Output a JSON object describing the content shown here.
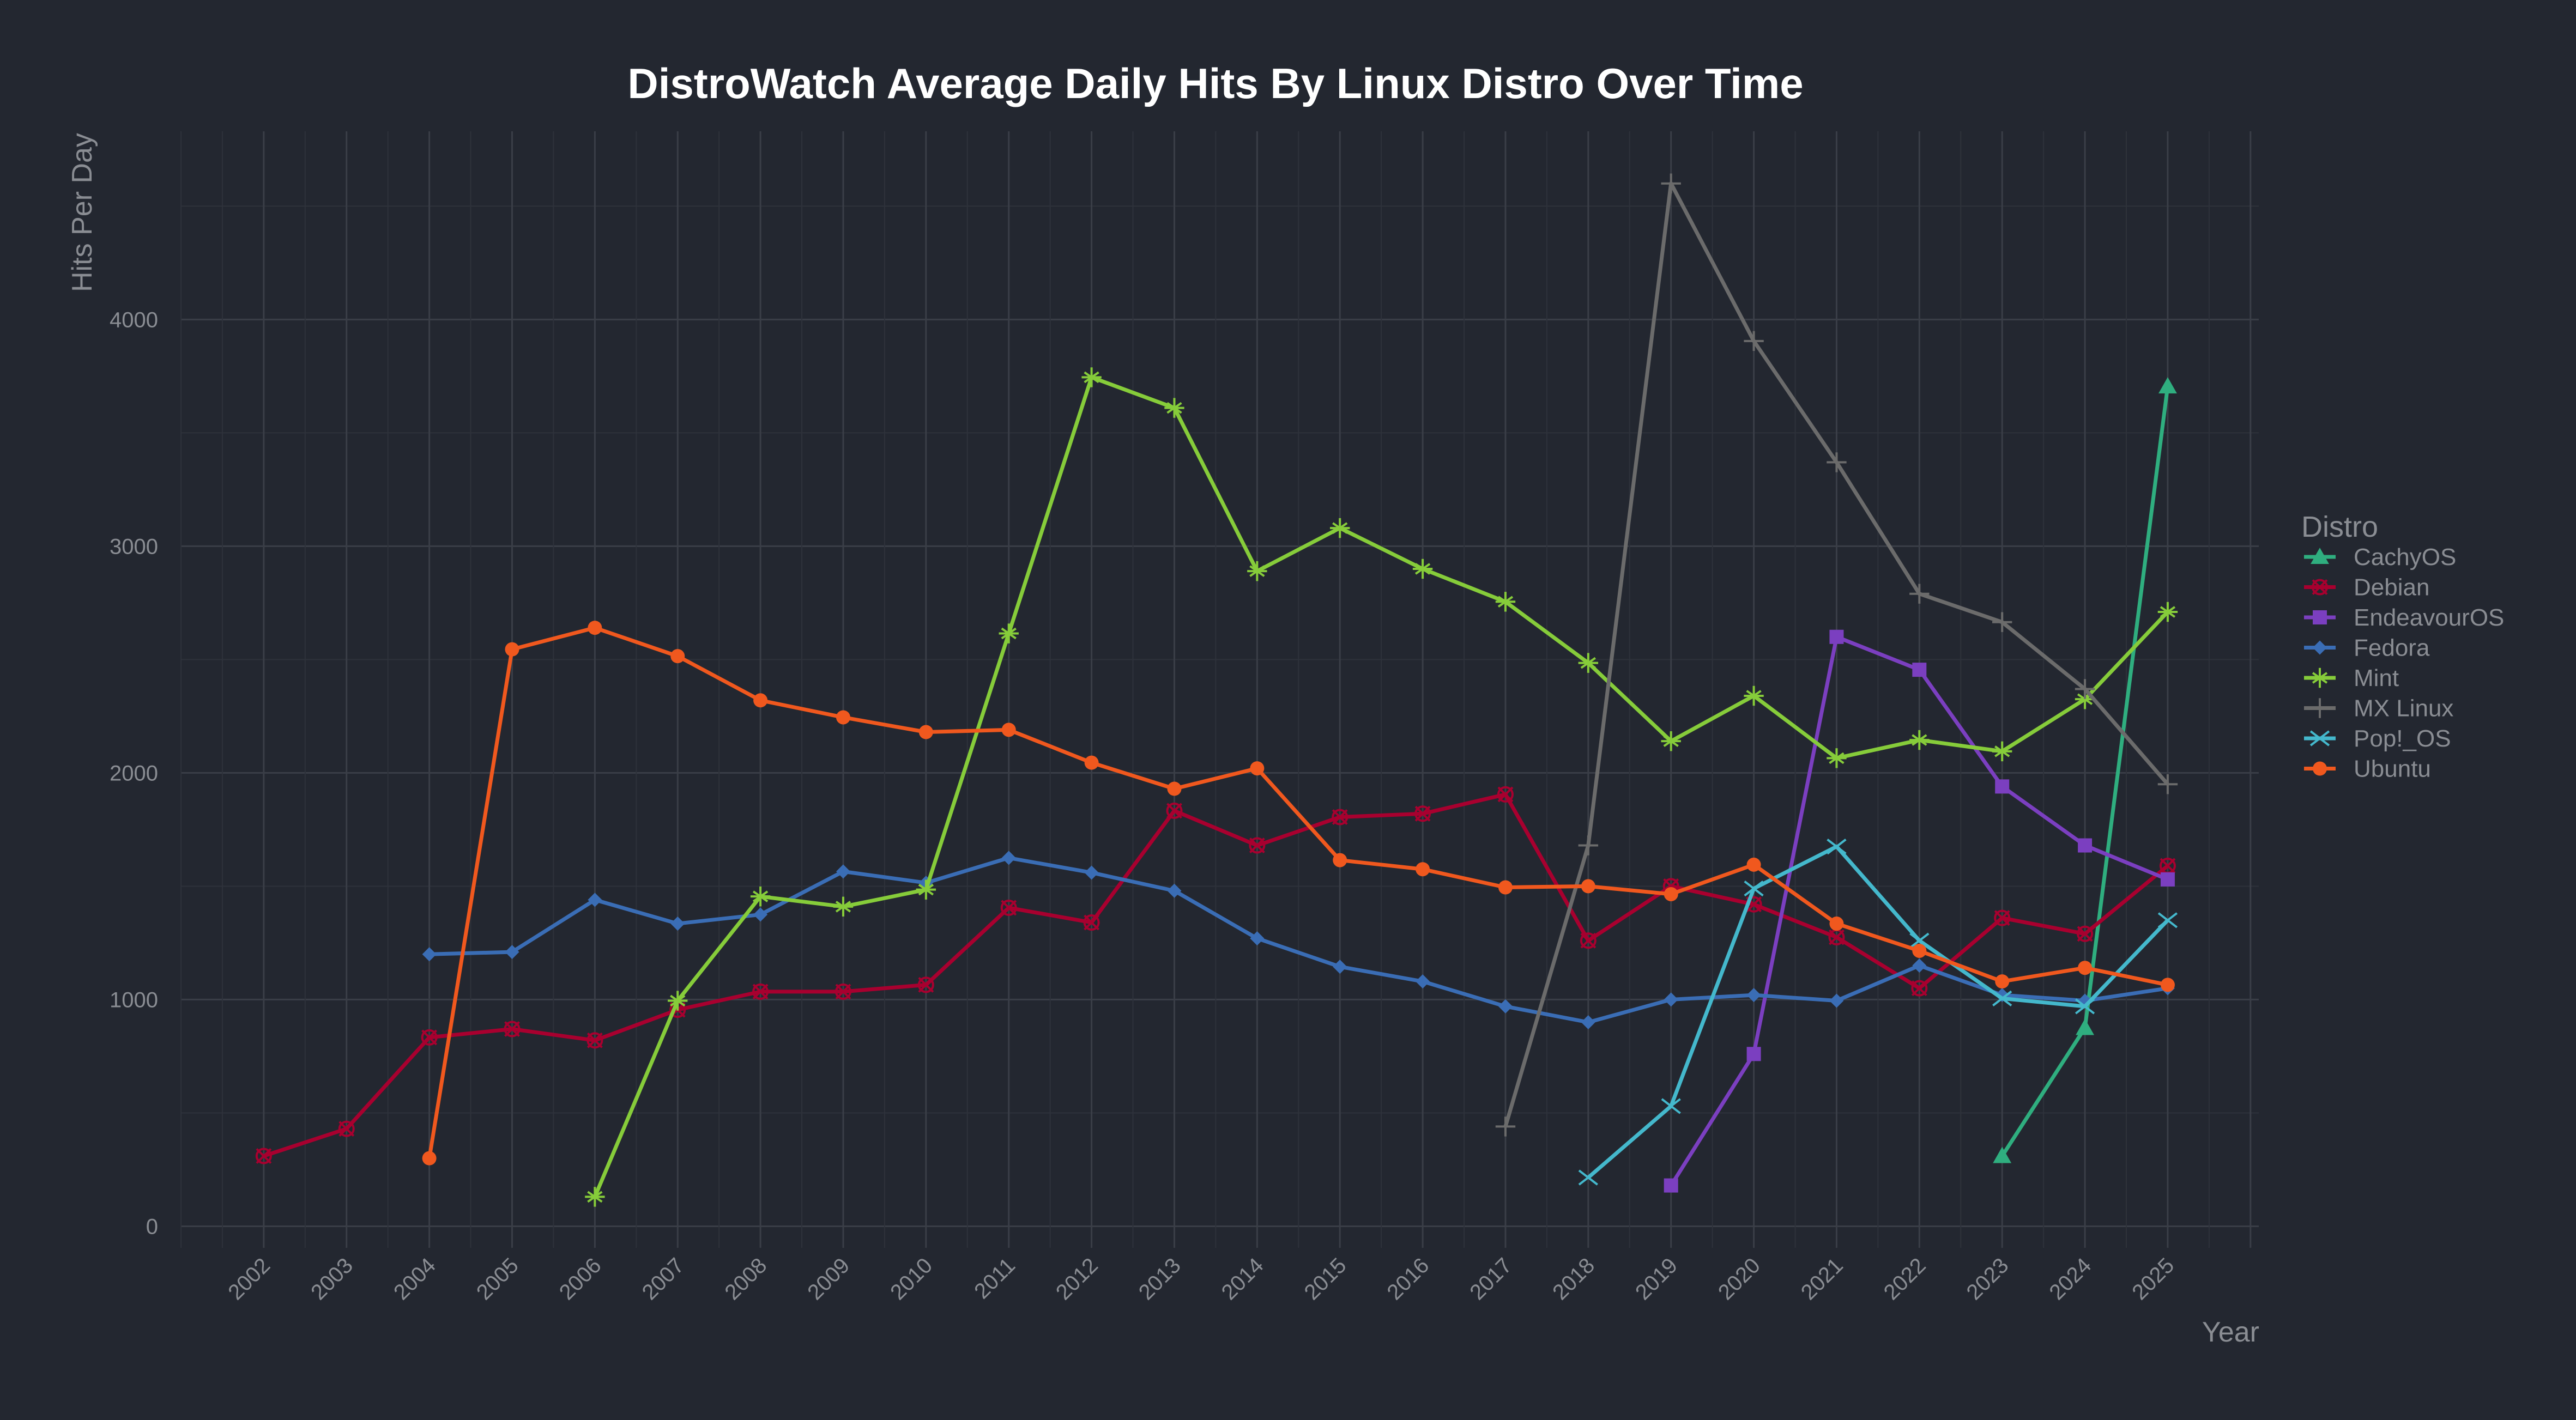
{
  "chart_data": {
    "type": "line",
    "title": "DistroWatch Average Daily Hits By Linux Distro Over Time",
    "xlabel": "Year",
    "ylabel": "Hits Per Day",
    "xlim": [
      2001,
      2026.1
    ],
    "ylim": [
      -95,
      4830
    ],
    "x_ticks": [
      2002,
      2003,
      2004,
      2005,
      2006,
      2007,
      2008,
      2009,
      2010,
      2011,
      2012,
      2013,
      2014,
      2015,
      2016,
      2017,
      2018,
      2019,
      2020,
      2021,
      2022,
      2023,
      2024,
      2025
    ],
    "x_tick_labels": [
      "2002",
      "2003",
      "2004",
      "2005",
      "2006",
      "2007",
      "2008",
      "2009",
      "2010",
      "2011",
      "2012",
      "2013",
      "2014",
      "2015",
      "2016",
      "2017",
      "2018",
      "2019",
      "2020",
      "2021",
      "2022",
      "2023",
      "2024",
      "2025"
    ],
    "y_ticks": [
      0,
      1000,
      2000,
      3000,
      4000
    ],
    "y_tick_labels": [
      "0",
      "1000",
      "2000",
      "3000",
      "4000"
    ],
    "grid": true,
    "legend": {
      "title": "Distro",
      "placement": "right"
    },
    "series": [
      {
        "name": "CachyOS",
        "color": "#2fae7f",
        "marker": "triangle",
        "x": [
          2023,
          2024,
          2025
        ],
        "values": [
          310,
          875,
          3705
        ]
      },
      {
        "name": "Debian",
        "color": "#a8002f",
        "marker": "circle-x",
        "x": [
          2002,
          2003,
          2004,
          2005,
          2006,
          2007,
          2008,
          2009,
          2010,
          2011,
          2012,
          2013,
          2014,
          2015,
          2016,
          2017,
          2018,
          2019,
          2020,
          2021,
          2022,
          2023,
          2024,
          2025
        ],
        "values": [
          310,
          430,
          833,
          870,
          820,
          955,
          1035,
          1035,
          1065,
          1405,
          1340,
          1833,
          1680,
          1805,
          1820,
          1905,
          1260,
          1500,
          1420,
          1275,
          1050,
          1360,
          1290,
          1590
        ]
      },
      {
        "name": "EndeavourOS",
        "color": "#7b3fc0",
        "marker": "square",
        "x": [
          2019,
          2020,
          2021,
          2022,
          2023,
          2024,
          2025
        ],
        "values": [
          180,
          760,
          2600,
          2455,
          1940,
          1680,
          1530
        ]
      },
      {
        "name": "Fedora",
        "color": "#3a6db5",
        "marker": "diamond",
        "x": [
          2004,
          2005,
          2006,
          2007,
          2008,
          2009,
          2010,
          2011,
          2012,
          2013,
          2014,
          2015,
          2016,
          2017,
          2018,
          2019,
          2020,
          2021,
          2022,
          2023,
          2024,
          2025
        ],
        "values": [
          1200,
          1210,
          1440,
          1335,
          1375,
          1565,
          1515,
          1625,
          1560,
          1480,
          1270,
          1145,
          1080,
          970,
          900,
          1000,
          1020,
          995,
          1150,
          1020,
          995,
          1050
        ]
      },
      {
        "name": "Mint",
        "color": "#86cc3a",
        "marker": "asterisk",
        "x": [
          2006,
          2007,
          2008,
          2009,
          2010,
          2011,
          2012,
          2013,
          2014,
          2015,
          2016,
          2017,
          2018,
          2019,
          2020,
          2021,
          2022,
          2023,
          2024,
          2025
        ],
        "values": [
          130,
          995,
          1455,
          1410,
          1485,
          2615,
          3745,
          3610,
          2890,
          3080,
          2900,
          2755,
          2485,
          2140,
          2340,
          2065,
          2145,
          2095,
          2325,
          2710
        ]
      },
      {
        "name": "MX Linux",
        "color": "#6b6b6b",
        "marker": "plus",
        "x": [
          2017,
          2018,
          2019,
          2020,
          2021,
          2022,
          2023,
          2024,
          2025
        ],
        "values": [
          440,
          1680,
          4600,
          3905,
          3370,
          2790,
          2665,
          2370,
          1950
        ]
      },
      {
        "name": "Pop!_OS",
        "color": "#44b8cc",
        "marker": "x",
        "x": [
          2018,
          2019,
          2020,
          2021,
          2022,
          2023,
          2024,
          2025
        ],
        "values": [
          215,
          530,
          1490,
          1675,
          1260,
          1005,
          970,
          1350
        ]
      },
      {
        "name": "Ubuntu",
        "color": "#f0581e",
        "marker": "circle",
        "x": [
          2004,
          2005,
          2006,
          2007,
          2008,
          2009,
          2010,
          2011,
          2012,
          2013,
          2014,
          2015,
          2016,
          2017,
          2018,
          2019,
          2020,
          2021,
          2022,
          2023,
          2024,
          2025
        ],
        "values": [
          300,
          2545,
          2640,
          2515,
          2320,
          2245,
          2180,
          2190,
          2045,
          1930,
          2020,
          1615,
          1575,
          1495,
          1500,
          1465,
          1595,
          1335,
          1215,
          1080,
          1140,
          1065
        ]
      }
    ]
  }
}
